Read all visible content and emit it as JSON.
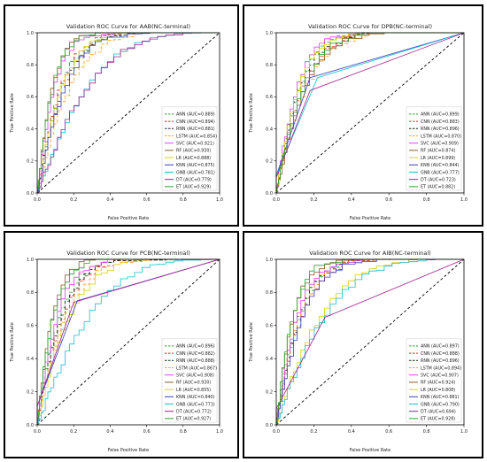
{
  "colors": {
    "ANN": "#2ca02c",
    "CNN": "#d62728",
    "RNN": "#1f1f1f",
    "LSTM": "#ff9f1c",
    "SVC": "#e040fb",
    "RF": "#8c5a2b",
    "LR": "#d4d40a",
    "KNN": "#3a3fbf",
    "GNB": "#17becf",
    "DT": "#a0208c",
    "ET": "#2ca02c",
    "diagonal": "#000000",
    "frame": "#000000"
  },
  "chart_data": [
    {
      "type": "line",
      "title": "Validation ROC Curve for AAB(NC-terminal)",
      "xlabel": "False Positive Rate",
      "ylabel": "True Positive Rate",
      "xlim": [
        0,
        1
      ],
      "ylim": [
        0,
        1
      ],
      "xticks": [
        "0.0",
        "0.2",
        "0.4",
        "0.6",
        "0.8",
        "1.0"
      ],
      "yticks": [
        "0.0",
        "0.2",
        "0.4",
        "0.6",
        "0.8",
        "1.0"
      ],
      "grid": false,
      "legend_position": "lower-right",
      "diagonal": true,
      "series": [
        {
          "name": "ANN (AUC=0.889)",
          "key": "ANN",
          "auc": 0.889,
          "dash": "4,2"
        },
        {
          "name": "CNN (AUC=0.894)",
          "key": "CNN",
          "auc": 0.894,
          "dash": "4,2"
        },
        {
          "name": "RNN (AUC=0.881)",
          "key": "RNN",
          "auc": 0.881,
          "dash": "4,2"
        },
        {
          "name": "LSTM (AUC=0.854)",
          "key": "LSTM",
          "auc": 0.854,
          "dash": "4,2"
        },
        {
          "name": "SVC (AUC=0.921)",
          "key": "SVC",
          "auc": 0.921,
          "dash": ""
        },
        {
          "name": "RF (AUC=0.930)",
          "key": "RF",
          "auc": 0.93,
          "dash": ""
        },
        {
          "name": "LR (AUC=0.888)",
          "key": "LR",
          "auc": 0.888,
          "dash": ""
        },
        {
          "name": "KNN (AUC=0.875)",
          "key": "KNN",
          "auc": 0.875,
          "dash": ""
        },
        {
          "name": "GNB (AUC=0.781)",
          "key": "GNB",
          "auc": 0.781,
          "dash": ""
        },
        {
          "name": "DT (AUC=0.779)",
          "key": "DT",
          "auc": 0.779,
          "dash": ""
        },
        {
          "name": "ET (AUC=0.929)",
          "key": "ET",
          "auc": 0.929,
          "dash": ""
        }
      ]
    },
    {
      "type": "line",
      "title": "Validation ROC Curve for DPB(NC-terminal)",
      "xlabel": "False Positive Rate",
      "ylabel": "True Positive Rate",
      "xlim": [
        0,
        1
      ],
      "ylim": [
        0,
        1
      ],
      "xticks": [
        "0.0",
        "0.2",
        "0.4",
        "0.6",
        "0.8",
        "1.0"
      ],
      "yticks": [
        "0.0",
        "0.2",
        "0.4",
        "0.6",
        "0.8",
        "1.0"
      ],
      "grid": false,
      "legend_position": "lower-right",
      "diagonal": true,
      "series": [
        {
          "name": "ANN (AUC=0.899)",
          "key": "ANN",
          "auc": 0.899,
          "dash": "4,2"
        },
        {
          "name": "CNN (AUC=0.883)",
          "key": "CNN",
          "auc": 0.883,
          "dash": "4,2"
        },
        {
          "name": "RNN (AUC=0.896)",
          "key": "RNN",
          "auc": 0.896,
          "dash": "4,2"
        },
        {
          "name": "LSTM (AUC=0.870)",
          "key": "LSTM",
          "auc": 0.87,
          "dash": "4,2"
        },
        {
          "name": "SVC (AUC=0.909)",
          "key": "SVC",
          "auc": 0.909,
          "dash": ""
        },
        {
          "name": "RF (AUC=0.874)",
          "key": "RF",
          "auc": 0.874,
          "dash": ""
        },
        {
          "name": "LR (AUC=0.899)",
          "key": "LR",
          "auc": 0.899,
          "dash": ""
        },
        {
          "name": "KNN (AUC=0.844)",
          "key": "KNN",
          "auc": 0.844,
          "dash": "",
          "knee": [
            0.18,
            0.72
          ]
        },
        {
          "name": "GNB (AUC=0.777)",
          "key": "GNB",
          "auc": 0.777,
          "dash": "",
          "knee": [
            0.22,
            0.72
          ]
        },
        {
          "name": "DT (AUC=0.723)",
          "key": "DT",
          "auc": 0.723,
          "dash": "",
          "knee": [
            0.18,
            0.64
          ]
        },
        {
          "name": "ET (AUC=0.882)",
          "key": "ET",
          "auc": 0.882,
          "dash": ""
        }
      ]
    },
    {
      "type": "line",
      "title": "Validation ROC Curve for PCB(NC-terminal)",
      "xlabel": "False Positive Rate",
      "ylabel": "True Positive Rate",
      "xlim": [
        0,
        1
      ],
      "ylim": [
        0,
        1
      ],
      "xticks": [
        "0.0",
        "0.2",
        "0.4",
        "0.6",
        "0.8",
        "1.0"
      ],
      "yticks": [
        "0.0",
        "0.2",
        "0.4",
        "0.6",
        "0.8",
        "1.0"
      ],
      "grid": false,
      "legend_position": "lower-right",
      "diagonal": true,
      "series": [
        {
          "name": "ANN (AUC=0.896)",
          "key": "ANN",
          "auc": 0.896,
          "dash": "4,2"
        },
        {
          "name": "CNN (AUC=0.882)",
          "key": "CNN",
          "auc": 0.882,
          "dash": "4,2"
        },
        {
          "name": "RNN (AUC=0.888)",
          "key": "RNN",
          "auc": 0.888,
          "dash": "4,2"
        },
        {
          "name": "LSTM (AUC=0.867)",
          "key": "LSTM",
          "auc": 0.867,
          "dash": "4,2"
        },
        {
          "name": "SVC (AUC=0.908)",
          "key": "SVC",
          "auc": 0.908,
          "dash": ""
        },
        {
          "name": "RF (AUC=0.930)",
          "key": "RF",
          "auc": 0.93,
          "dash": ""
        },
        {
          "name": "LR (AUC=0.855)",
          "key": "LR",
          "auc": 0.855,
          "dash": ""
        },
        {
          "name": "KNN (AUC=0.840)",
          "key": "KNN",
          "auc": 0.84,
          "dash": "",
          "knee": [
            0.22,
            0.75
          ]
        },
        {
          "name": "GNB (AUC=0.773)",
          "key": "GNB",
          "auc": 0.773,
          "dash": ""
        },
        {
          "name": "DT (AUC=0.772)",
          "key": "DT",
          "auc": 0.772,
          "dash": "",
          "knee": [
            0.2,
            0.74
          ]
        },
        {
          "name": "ET (AUC=0.927)",
          "key": "ET",
          "auc": 0.927,
          "dash": ""
        }
      ]
    },
    {
      "type": "line",
      "title": "Validation ROC Curve for AIB(NC-terminal)",
      "xlabel": "False Positive Rate",
      "ylabel": "True Positive Rate",
      "xlim": [
        0,
        1
      ],
      "ylim": [
        0,
        1
      ],
      "xticks": [
        "0.0",
        "0.2",
        "0.4",
        "0.6",
        "0.8",
        "1.0"
      ],
      "yticks": [
        "0.0",
        "0.2",
        "0.4",
        "0.6",
        "0.8",
        "1.0"
      ],
      "grid": false,
      "legend_position": "lower-right",
      "diagonal": true,
      "series": [
        {
          "name": "ANN (AUC=0.897)",
          "key": "ANN",
          "auc": 0.897,
          "dash": "4,2"
        },
        {
          "name": "CNN (AUC=0.888)",
          "key": "CNN",
          "auc": 0.888,
          "dash": "4,2"
        },
        {
          "name": "RNN (AUC=0.896)",
          "key": "RNN",
          "auc": 0.896,
          "dash": "4,2"
        },
        {
          "name": "LSTM (AUC=0.894)",
          "key": "LSTM",
          "auc": 0.894,
          "dash": "4,2"
        },
        {
          "name": "SVC (AUC=0.907)",
          "key": "SVC",
          "auc": 0.907,
          "dash": ""
        },
        {
          "name": "RF (AUC=0.924)",
          "key": "RF",
          "auc": 0.924,
          "dash": ""
        },
        {
          "name": "LR (AUC=0.808)",
          "key": "LR",
          "auc": 0.808,
          "dash": ""
        },
        {
          "name": "KNN (AUC=0.881)",
          "key": "KNN",
          "auc": 0.881,
          "dash": ""
        },
        {
          "name": "GNB (AUC=0.790)",
          "key": "GNB",
          "auc": 0.79,
          "dash": ""
        },
        {
          "name": "DT (AUC=0.694)",
          "key": "DT",
          "auc": 0.694,
          "dash": "",
          "knee": [
            0.26,
            0.65
          ]
        },
        {
          "name": "ET (AUC=0.928)",
          "key": "ET",
          "auc": 0.928,
          "dash": ""
        }
      ]
    }
  ]
}
